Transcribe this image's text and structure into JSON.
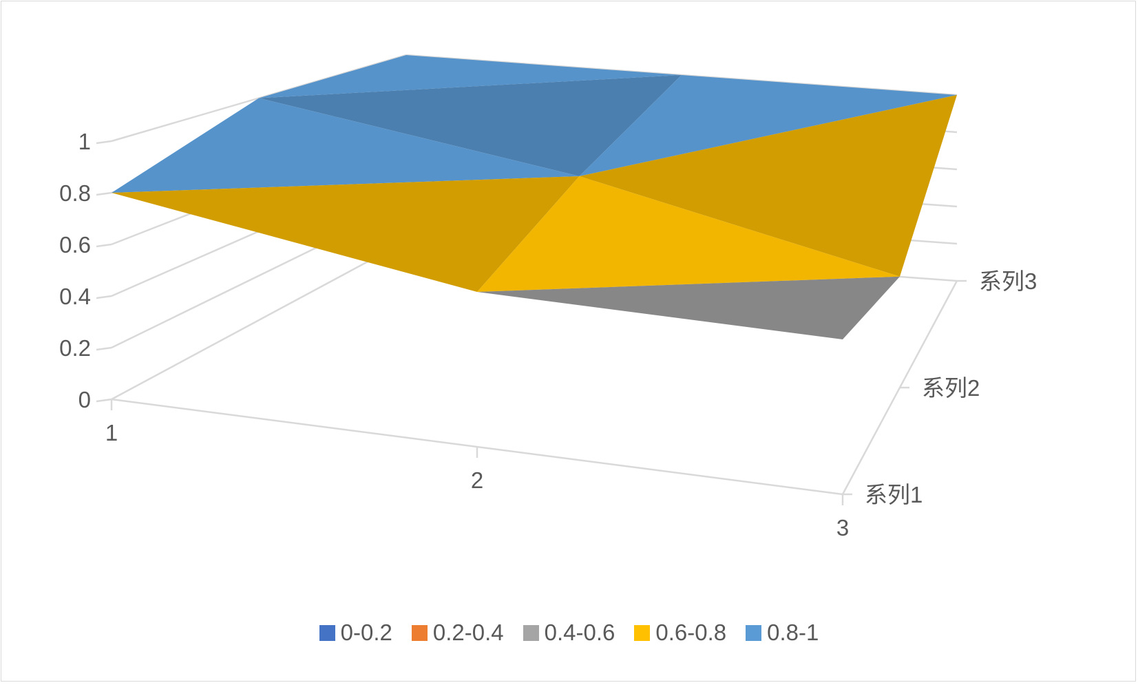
{
  "chart_data": {
    "type": "surface-3d",
    "title": "",
    "categories": [
      "1",
      "2",
      "3"
    ],
    "series": [
      {
        "name": "系列1",
        "values": [
          0.8,
          0.6,
          0.6
        ]
      },
      {
        "name": "系列2",
        "values": [
          1.0,
          0.8,
          0.5
        ]
      },
      {
        "name": "系列3",
        "values": [
          1.0,
          1.0,
          1.0
        ]
      }
    ],
    "value_axis": {
      "min": 0,
      "max": 1,
      "ticks": [
        "0",
        "0.2",
        "0.4",
        "0.6",
        "0.8",
        "1"
      ]
    },
    "category_ticks": [
      "1",
      "2",
      "3"
    ],
    "depth_ticks": [
      "系列1",
      "系列2",
      "系列3"
    ],
    "legend": {
      "position": "bottom",
      "entries": [
        {
          "label": "0-0.2",
          "color": "#4472c4"
        },
        {
          "label": "0.2-0.4",
          "color": "#ed7d31"
        },
        {
          "label": "0.4-0.6",
          "color": "#a5a5a5"
        },
        {
          "label": "0.6-0.8",
          "color": "#ffc000"
        },
        {
          "label": "0.8-1",
          "color": "#5b9bd5"
        }
      ]
    },
    "grid": true
  }
}
